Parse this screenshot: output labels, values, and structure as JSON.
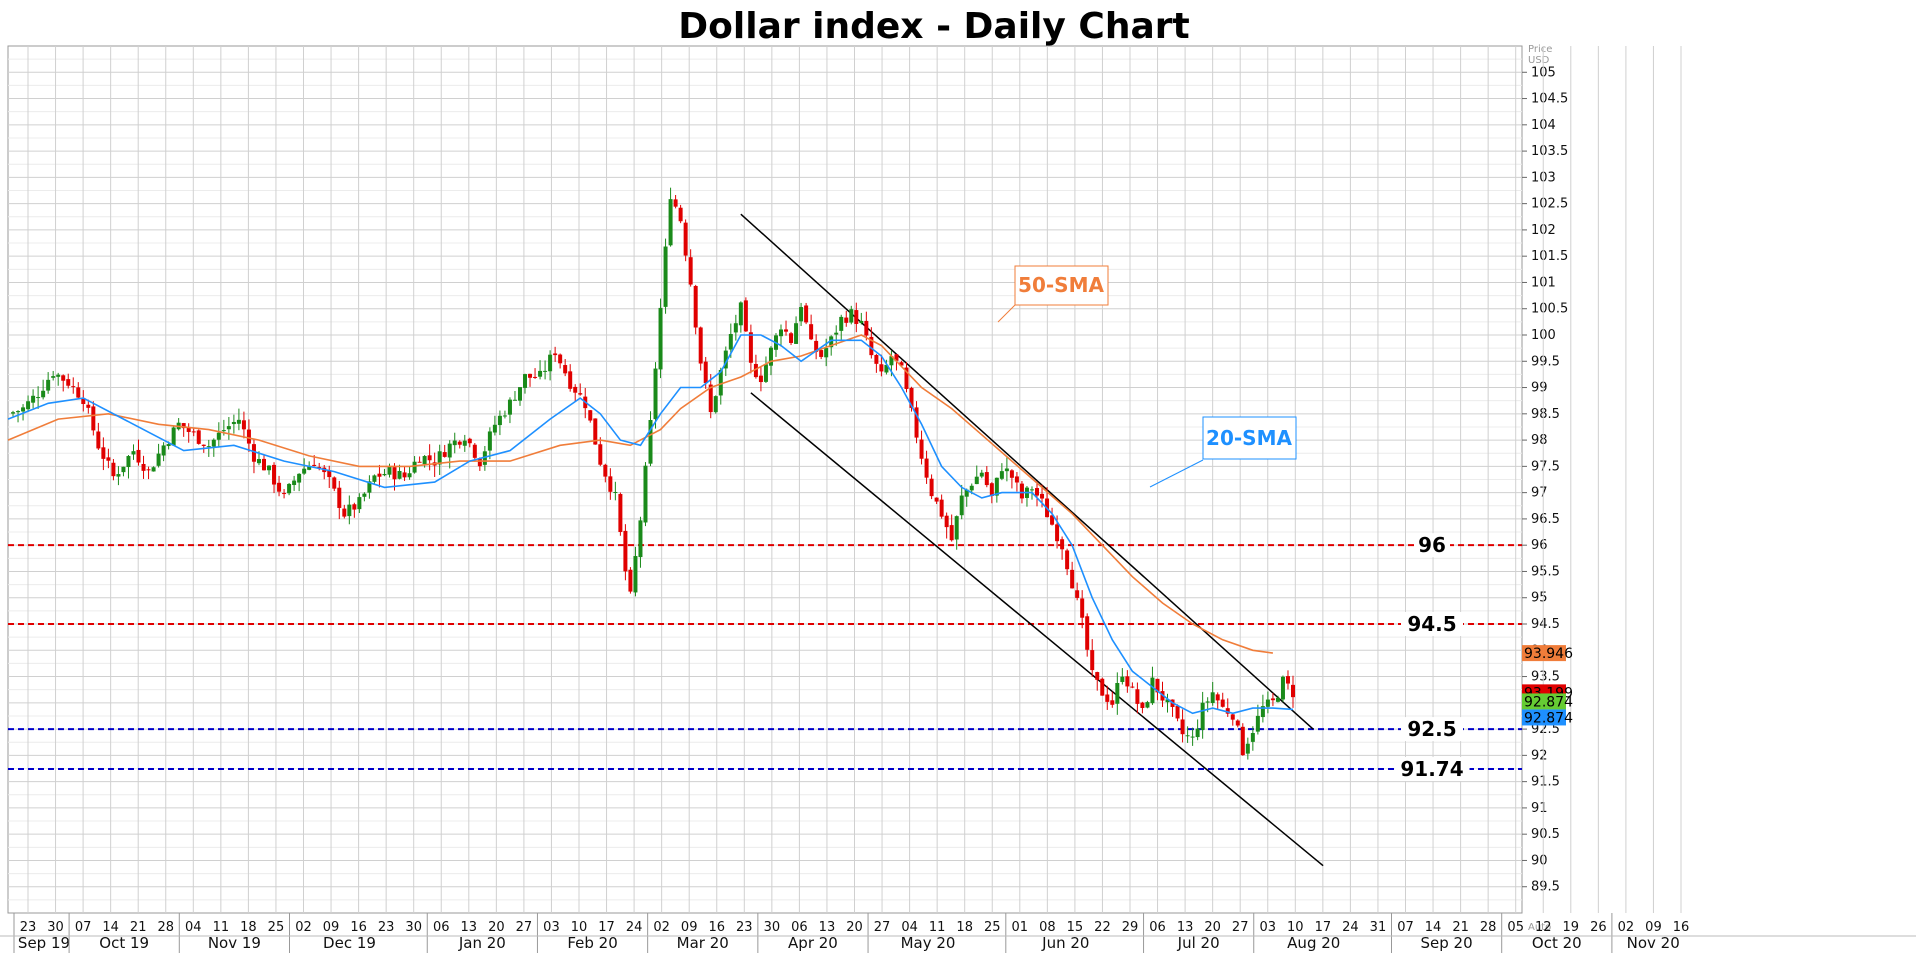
{
  "chart_data": {
    "type": "candlestick",
    "title": "Dollar index - Daily Chart",
    "y_unit": [
      "Price",
      "USD"
    ],
    "auto_label": "Auto",
    "ylim": [
      89,
      105.5
    ],
    "y_ticks": [
      "105",
      "104.5",
      "104",
      "103.5",
      "103",
      "102.5",
      "102",
      "101.5",
      "101",
      "100.5",
      "100",
      "99.5",
      "99",
      "98.5",
      "98",
      "97.5",
      "97",
      "96.5",
      "96",
      "95.5",
      "95",
      "94.5",
      "94",
      "93.5",
      "93",
      "92.5",
      "92",
      "91.5",
      "91",
      "90.5",
      "90",
      "89.5"
    ],
    "x_day_ticks": [
      "23",
      "30",
      "07",
      "14",
      "21",
      "28",
      "04",
      "11",
      "18",
      "25",
      "02",
      "09",
      "16",
      "23",
      "30",
      "06",
      "13",
      "20",
      "27",
      "03",
      "10",
      "17",
      "24",
      "02",
      "09",
      "16",
      "23",
      "30",
      "06",
      "13",
      "20",
      "27",
      "04",
      "11",
      "18",
      "25",
      "01",
      "08",
      "15",
      "22",
      "29",
      "06",
      "13",
      "20",
      "27",
      "03",
      "10",
      "17",
      "24",
      "31",
      "07",
      "14",
      "21",
      "28",
      "05",
      "12",
      "19",
      "26",
      "02",
      "09",
      "16"
    ],
    "x_month_labels": [
      "Sep 19",
      "Oct 19",
      "Nov 19",
      "Dec 19",
      "Jan 20",
      "Feb 20",
      "Mar 20",
      "Apr 20",
      "May 20",
      "Jun 20",
      "Jul 20",
      "Aug 20",
      "Sep 20",
      "Oct 20",
      "Nov 20"
    ],
    "grid": true,
    "colors": {
      "up": "#1a8a1a",
      "down": "#e00000",
      "sma20": "#1e90ff",
      "sma50": "#f07d3a",
      "red_level": "#e00000",
      "blue_level": "#0000cc"
    },
    "price_path": [
      [
        0,
        98.5
      ],
      [
        3,
        98.6
      ],
      [
        6,
        98.9
      ],
      [
        9,
        99.3
      ],
      [
        12,
        99.1
      ],
      [
        15,
        98.8
      ],
      [
        18,
        97.9
      ],
      [
        21,
        97.3
      ],
      [
        25,
        97.8
      ],
      [
        28,
        97.4
      ],
      [
        31,
        97.9
      ],
      [
        34,
        98.3
      ],
      [
        37,
        98.1
      ],
      [
        40,
        97.9
      ],
      [
        43,
        98.2
      ],
      [
        46,
        98.4
      ],
      [
        49,
        97.7
      ],
      [
        52,
        97.4
      ],
      [
        55,
        96.9
      ],
      [
        58,
        97.4
      ],
      [
        61,
        97.6
      ],
      [
        64,
        97.2
      ],
      [
        67,
        96.6
      ],
      [
        70,
        96.8
      ],
      [
        73,
        97.3
      ],
      [
        76,
        97.4
      ],
      [
        79,
        97.3
      ],
      [
        82,
        97.7
      ],
      [
        85,
        97.6
      ],
      [
        88,
        97.9
      ],
      [
        91,
        98.1
      ],
      [
        94,
        97.6
      ],
      [
        97,
        98.3
      ],
      [
        100,
        98.7
      ],
      [
        103,
        99.2
      ],
      [
        106,
        99.2
      ],
      [
        109,
        99.7
      ],
      [
        112,
        99.1
      ],
      [
        115,
        98.7
      ],
      [
        118,
        97.6
      ],
      [
        121,
        96.9
      ],
      [
        123,
        95.5
      ],
      [
        124,
        95.0
      ],
      [
        126,
        96.5
      ],
      [
        128,
        98.3
      ],
      [
        130,
        100.5
      ],
      [
        132,
        102.7
      ],
      [
        134,
        102.2
      ],
      [
        136,
        101.0
      ],
      [
        138,
        99.5
      ],
      [
        140,
        98.5
      ],
      [
        142,
        99.3
      ],
      [
        144,
        100.0
      ],
      [
        146,
        100.5
      ],
      [
        148,
        99.4
      ],
      [
        150,
        99.2
      ],
      [
        152,
        99.7
      ],
      [
        154,
        100.2
      ],
      [
        156,
        99.9
      ],
      [
        158,
        100.6
      ],
      [
        160,
        99.8
      ],
      [
        162,
        99.6
      ],
      [
        164,
        99.9
      ],
      [
        166,
        100.3
      ],
      [
        168,
        100.4
      ],
      [
        170,
        100.2
      ],
      [
        172,
        99.6
      ],
      [
        174,
        99.2
      ],
      [
        176,
        99.6
      ],
      [
        178,
        99.3
      ],
      [
        180,
        98.5
      ],
      [
        182,
        97.7
      ],
      [
        184,
        97.0
      ],
      [
        186,
        96.6
      ],
      [
        188,
        96.1
      ],
      [
        190,
        96.9
      ],
      [
        192,
        97.2
      ],
      [
        194,
        97.4
      ],
      [
        196,
        96.9
      ],
      [
        198,
        97.5
      ],
      [
        200,
        97.3
      ],
      [
        202,
        96.9
      ],
      [
        204,
        97.1
      ],
      [
        206,
        96.8
      ],
      [
        208,
        96.4
      ],
      [
        210,
        96.0
      ],
      [
        212,
        95.3
      ],
      [
        214,
        94.5
      ],
      [
        216,
        93.5
      ],
      [
        218,
        93.2
      ],
      [
        220,
        93.0
      ],
      [
        222,
        93.6
      ],
      [
        224,
        93.2
      ],
      [
        226,
        92.8
      ],
      [
        228,
        93.4
      ],
      [
        230,
        93.1
      ],
      [
        232,
        92.8
      ],
      [
        234,
        92.4
      ],
      [
        236,
        92.3
      ],
      [
        238,
        92.9
      ],
      [
        240,
        93.2
      ],
      [
        242,
        92.9
      ],
      [
        244,
        92.8
      ],
      [
        246,
        92.1
      ],
      [
        248,
        92.5
      ],
      [
        250,
        92.9
      ],
      [
        252,
        93.0
      ],
      [
        254,
        93.4
      ],
      [
        256,
        93.2
      ]
    ],
    "sma20": [
      [
        0,
        98.4
      ],
      [
        8,
        98.7
      ],
      [
        15,
        98.8
      ],
      [
        25,
        98.3
      ],
      [
        35,
        97.8
      ],
      [
        45,
        97.9
      ],
      [
        55,
        97.6
      ],
      [
        65,
        97.4
      ],
      [
        75,
        97.1
      ],
      [
        85,
        97.2
      ],
      [
        92,
        97.6
      ],
      [
        100,
        97.8
      ],
      [
        108,
        98.4
      ],
      [
        114,
        98.8
      ],
      [
        118,
        98.5
      ],
      [
        122,
        98.0
      ],
      [
        126,
        97.9
      ],
      [
        130,
        98.5
      ],
      [
        134,
        99.0
      ],
      [
        138,
        99.0
      ],
      [
        142,
        99.3
      ],
      [
        146,
        100.0
      ],
      [
        150,
        100.0
      ],
      [
        154,
        99.8
      ],
      [
        158,
        99.5
      ],
      [
        164,
        99.9
      ],
      [
        170,
        99.9
      ],
      [
        174,
        99.6
      ],
      [
        178,
        99.0
      ],
      [
        182,
        98.3
      ],
      [
        186,
        97.5
      ],
      [
        190,
        97.1
      ],
      [
        194,
        96.9
      ],
      [
        198,
        97.0
      ],
      [
        204,
        97.0
      ],
      [
        208,
        96.6
      ],
      [
        212,
        96.0
      ],
      [
        216,
        95.0
      ],
      [
        220,
        94.2
      ],
      [
        224,
        93.6
      ],
      [
        228,
        93.3
      ],
      [
        232,
        93.0
      ],
      [
        236,
        92.8
      ],
      [
        240,
        92.9
      ],
      [
        244,
        92.8
      ],
      [
        248,
        92.9
      ],
      [
        252,
        92.9
      ],
      [
        256,
        92.874
      ]
    ],
    "sma50": [
      [
        0,
        98.0
      ],
      [
        10,
        98.4
      ],
      [
        20,
        98.5
      ],
      [
        30,
        98.3
      ],
      [
        40,
        98.2
      ],
      [
        50,
        98.0
      ],
      [
        60,
        97.7
      ],
      [
        70,
        97.5
      ],
      [
        80,
        97.5
      ],
      [
        90,
        97.6
      ],
      [
        100,
        97.6
      ],
      [
        110,
        97.9
      ],
      [
        118,
        98.0
      ],
      [
        124,
        97.9
      ],
      [
        130,
        98.2
      ],
      [
        134,
        98.6
      ],
      [
        140,
        99.0
      ],
      [
        146,
        99.2
      ],
      [
        152,
        99.5
      ],
      [
        158,
        99.6
      ],
      [
        164,
        99.8
      ],
      [
        170,
        100.0
      ],
      [
        174,
        99.8
      ],
      [
        178,
        99.4
      ],
      [
        182,
        99.0
      ],
      [
        188,
        98.6
      ],
      [
        194,
        98.1
      ],
      [
        200,
        97.6
      ],
      [
        206,
        97.1
      ],
      [
        212,
        96.6
      ],
      [
        218,
        96.0
      ],
      [
        224,
        95.4
      ],
      [
        230,
        94.9
      ],
      [
        236,
        94.5
      ],
      [
        242,
        94.2
      ],
      [
        248,
        94.0
      ],
      [
        252,
        93.946
      ]
    ],
    "levels": [
      {
        "value": 96,
        "label": "96",
        "style": "red"
      },
      {
        "value": 94.5,
        "label": "94.5",
        "style": "red"
      },
      {
        "value": 92.5,
        "label": "92.5",
        "style": "blue"
      },
      {
        "value": 91.74,
        "label": "91.74",
        "style": "blue"
      }
    ],
    "channel": {
      "upper": [
        [
          146,
          102.3
        ],
        [
          260,
          92.5
        ]
      ],
      "lower": [
        [
          148,
          98.9
        ],
        [
          262,
          89.9
        ]
      ]
    },
    "sma_labels": [
      {
        "text": "50-SMA",
        "series": "sma50",
        "at": [
          190,
          98.6
        ]
      },
      {
        "text": "20-SMA",
        "series": "sma20",
        "at": [
          220,
          94.5
        ]
      }
    ],
    "price_tags": [
      {
        "value": 93.946,
        "text": "93.946",
        "color": "#f07d3a"
      },
      {
        "value": 93.199,
        "text": "93.199",
        "color": "#e00000"
      },
      {
        "value": 92.874,
        "text": "92.874",
        "color": "#66cc33"
      },
      {
        "value": 92.874,
        "text": "92.874",
        "color": "#1e90ff"
      }
    ]
  }
}
